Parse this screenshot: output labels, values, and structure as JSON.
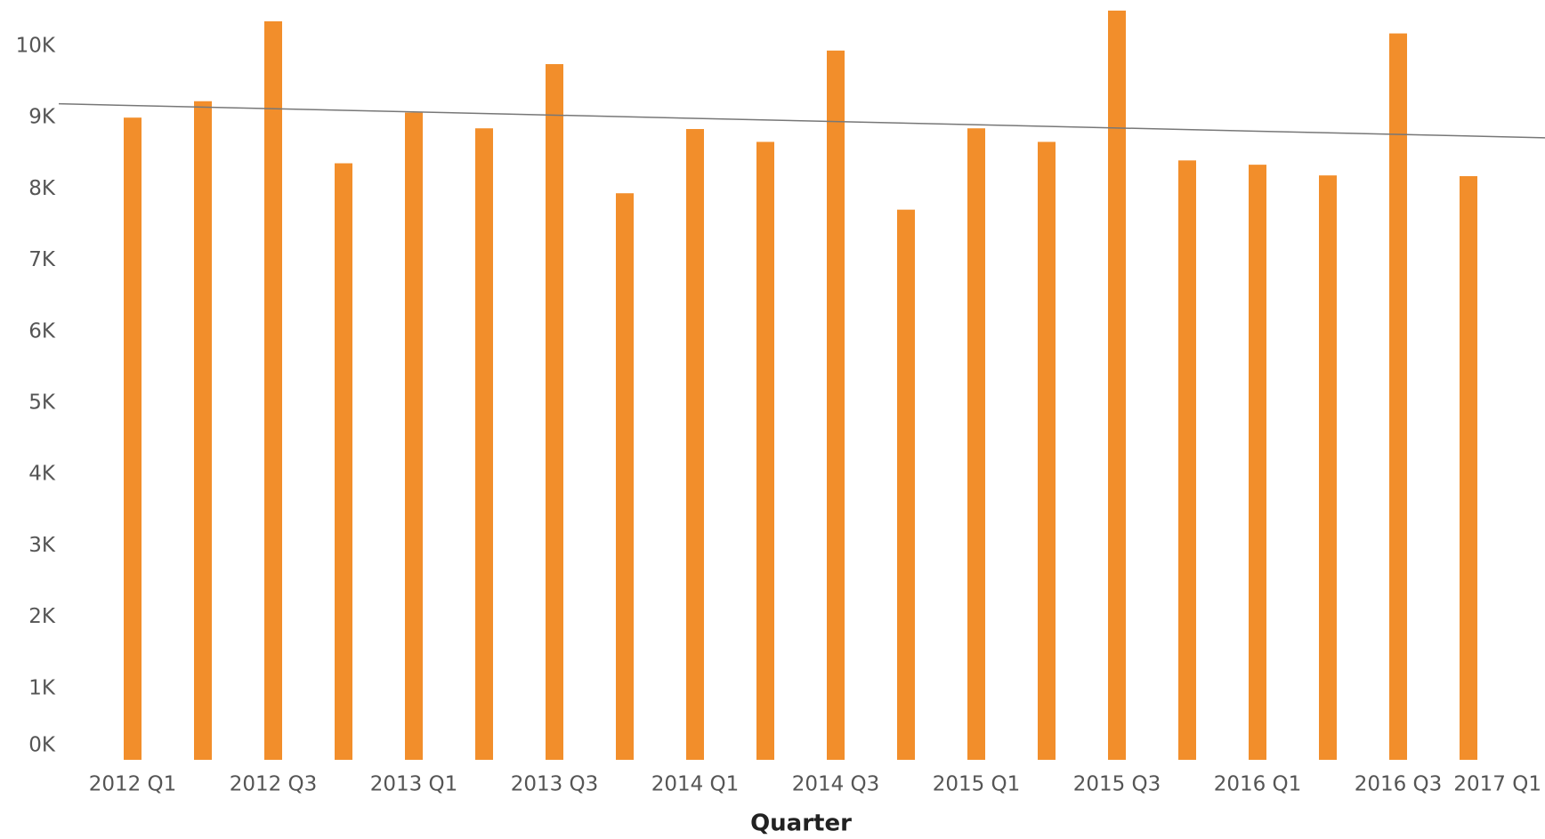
{
  "chart_data": {
    "type": "bar",
    "x_label": "Quarter",
    "categories": [
      "2012 Q1",
      null,
      "2012 Q3",
      null,
      "2013 Q1",
      null,
      "2013 Q3",
      null,
      "2014 Q1",
      null,
      "2014 Q3",
      null,
      "2015 Q1",
      null,
      "2015 Q3",
      null,
      "2016 Q1",
      null,
      "2016 Q3",
      null,
      "2017 Q1"
    ],
    "values": [
      9000,
      9230,
      10350,
      8360,
      9070,
      8850,
      9750,
      7940,
      8840,
      8660,
      9940,
      7710,
      8850,
      8660,
      10500,
      8400,
      8340,
      8190,
      10180,
      8180,
      null
    ],
    "color": "#f28e2b",
    "trend": {
      "start": 9170,
      "end": 8720,
      "color": "#777777"
    },
    "ylim": [
      0,
      10500
    ],
    "yticks": [
      {
        "value": 0,
        "label": "0K"
      },
      {
        "value": 1000,
        "label": "1K"
      },
      {
        "value": 2000,
        "label": "2K"
      },
      {
        "value": 3000,
        "label": "3K"
      },
      {
        "value": 4000,
        "label": "4K"
      },
      {
        "value": 5000,
        "label": "5K"
      },
      {
        "value": 6000,
        "label": "6K"
      },
      {
        "value": 7000,
        "label": "7K"
      },
      {
        "value": 8000,
        "label": "8K"
      },
      {
        "value": 9000,
        "label": "9K"
      },
      {
        "value": 10000,
        "label": "10K"
      }
    ],
    "grid": false
  }
}
